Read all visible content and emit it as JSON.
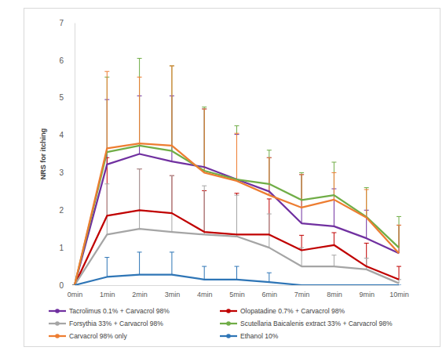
{
  "chart_data": {
    "type": "line",
    "y_label": "NRS for itching",
    "categories": [
      "0min",
      "1min",
      "2min",
      "3min",
      "4min",
      "5min",
      "6min",
      "7min",
      "8min",
      "9min",
      "10min"
    ],
    "ylim": [
      0,
      7
    ],
    "yticks": [
      0,
      1,
      2,
      3,
      4,
      5,
      6,
      7
    ],
    "grid": false,
    "legend": "bottom",
    "series": [
      {
        "name": "Tacrolimus 0.1% + Carvacrol 98%",
        "color": "#7030a0",
        "values": [
          0,
          3.22,
          3.5,
          3.3,
          3.15,
          2.82,
          2.5,
          1.65,
          1.57,
          1.25,
          0.85
        ],
        "errors": [
          0,
          1.73,
          1.55,
          1.75,
          1.55,
          1.2,
          0.9,
          1.3,
          1.0,
          0.75,
          0.75
        ]
      },
      {
        "name": "Olopatadine 0.7% + Carvacrol 98%",
        "color": "#c00000",
        "values": [
          0,
          1.85,
          2.0,
          1.92,
          1.42,
          1.35,
          1.35,
          0.93,
          1.07,
          0.5,
          0.15
        ],
        "errors": [
          0,
          1.55,
          1.1,
          1.0,
          1.1,
          1.1,
          0.95,
          0.4,
          0.33,
          0.62,
          0.35
        ]
      },
      {
        "name": "Forsythia 33% + Carvacrol 98%",
        "color": "#a5a5a5",
        "values": [
          0,
          1.35,
          1.5,
          1.42,
          1.35,
          1.3,
          1.0,
          0.5,
          0.5,
          0.42,
          0.05
        ],
        "errors": [
          0,
          1.35,
          1.6,
          1.5,
          1.3,
          1.1,
          0.9,
          0.5,
          0.3,
          0.3,
          0.1
        ]
      },
      {
        "name": "Scutellaria Baicalenis extract 33% + Carvacrol 98%",
        "color": "#70ad47",
        "values": [
          0,
          3.55,
          3.72,
          3.58,
          3.05,
          2.82,
          2.7,
          2.27,
          2.4,
          1.82,
          1.0
        ],
        "errors": [
          0,
          2.0,
          2.33,
          2.27,
          1.7,
          1.43,
          0.9,
          0.73,
          0.88,
          0.78,
          0.83
        ]
      },
      {
        "name": "Carvacrol 98% only",
        "color": "#ed7d31",
        "values": [
          0,
          3.65,
          3.78,
          3.72,
          3.0,
          2.78,
          2.4,
          2.07,
          2.28,
          1.8,
          0.85
        ],
        "errors": [
          0,
          2.05,
          1.77,
          2.13,
          1.7,
          1.27,
          1.0,
          0.88,
          0.72,
          0.75,
          0.75
        ]
      },
      {
        "name": "Ethanol 10%",
        "color": "#2e75b6",
        "values": [
          0,
          0.22,
          0.28,
          0.28,
          0.15,
          0.15,
          0.08,
          0,
          0,
          0,
          0
        ],
        "errors": [
          0,
          0.52,
          0.6,
          0.6,
          0.35,
          0.35,
          0.25,
          0,
          0,
          0,
          0
        ]
      }
    ]
  }
}
